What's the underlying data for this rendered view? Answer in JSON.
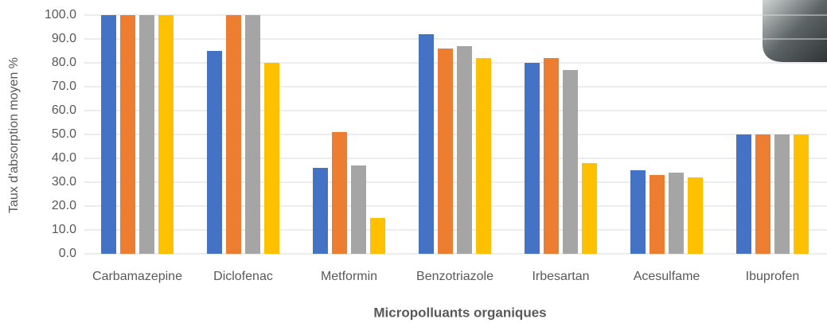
{
  "chart_data": {
    "type": "bar",
    "x_label": "Micropolluants organiques",
    "y_label": "Taux d'absorption moyen %",
    "categories": [
      "Carbamazepine",
      "Diclofenac",
      "Metformin",
      "Benzotriazole",
      "Irbesartan",
      "Acesulfame",
      "Ibuprofen"
    ],
    "series": [
      {
        "color": "#4472c4",
        "values": [
          100,
          85,
          36,
          92,
          80,
          35,
          50
        ]
      },
      {
        "color": "#ed7d31",
        "values": [
          100,
          100,
          51,
          86,
          82,
          33,
          50
        ]
      },
      {
        "color": "#a5a5a5",
        "values": [
          100,
          100,
          37,
          87,
          77,
          34,
          50
        ]
      },
      {
        "color": "#ffc000",
        "values": [
          100,
          80,
          15,
          82,
          38,
          32,
          50
        ]
      }
    ],
    "ylim": [
      0,
      100
    ],
    "yticks": [
      {
        "value": 0,
        "label": "0.0"
      },
      {
        "value": 10,
        "label": "10.0"
      },
      {
        "value": 20,
        "label": "20.0"
      },
      {
        "value": 30,
        "label": "30.0"
      },
      {
        "value": 40,
        "label": "40.0"
      },
      {
        "value": 50,
        "label": "50.0"
      },
      {
        "value": 60,
        "label": "60.0"
      },
      {
        "value": 70,
        "label": "70.0"
      },
      {
        "value": 80,
        "label": "80.0"
      },
      {
        "value": 90,
        "label": "90.0"
      },
      {
        "value": 100,
        "label": "100.0"
      }
    ],
    "grid": true
  }
}
